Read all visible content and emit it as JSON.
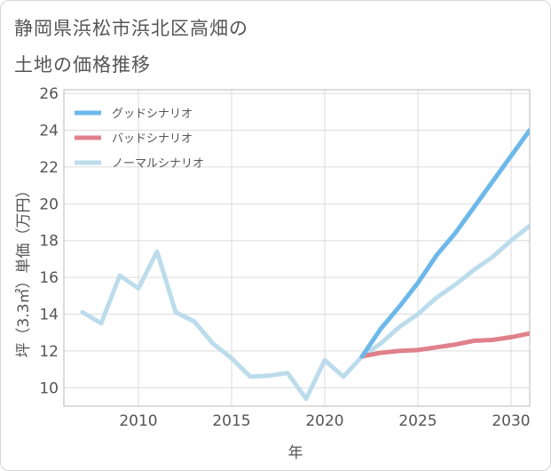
{
  "title": {
    "line1": "静岡県浜松市浜北区高畑の",
    "line2": "土地の価格推移"
  },
  "colors": {
    "good": "#6cb8ea",
    "bad": "#e0808a",
    "normal": "#bcdcec",
    "grid": "#dcdcdc",
    "frame": "#b9b9b9",
    "text": "#555555"
  },
  "chart_data": {
    "type": "line",
    "xlabel": "年",
    "ylabel": "坪（3.3㎡）単価（万円）",
    "xlim": [
      2006,
      2031
    ],
    "ylim": [
      9,
      26.2
    ],
    "xticks": [
      2010,
      2015,
      2020,
      2025,
      2030
    ],
    "yticks": [
      10,
      12,
      14,
      16,
      18,
      20,
      22,
      24,
      26
    ],
    "series": [
      {
        "key": "good",
        "name": "グッドシナリオ",
        "x": [
          2022,
          2023,
          2024,
          2025,
          2026,
          2027,
          2028,
          2029,
          2030,
          2031
        ],
        "y": [
          11.7,
          13.2,
          14.4,
          15.7,
          17.2,
          18.4,
          19.8,
          21.2,
          22.6,
          24.0
        ]
      },
      {
        "key": "bad",
        "name": "バッドシナリオ",
        "x": [
          2022,
          2023,
          2024,
          2025,
          2026,
          2027,
          2028,
          2029,
          2030,
          2031
        ],
        "y": [
          11.7,
          11.9,
          12.0,
          12.05,
          12.2,
          12.35,
          12.55,
          12.6,
          12.75,
          12.95
        ]
      },
      {
        "key": "normal",
        "name": "ノーマルシナリオ",
        "x": [
          2007,
          2008,
          2009,
          2010,
          2011,
          2012,
          2013,
          2014,
          2015,
          2016,
          2017,
          2018,
          2019,
          2020,
          2021,
          2022,
          2023,
          2024,
          2025,
          2026,
          2027,
          2028,
          2029,
          2030,
          2031
        ],
        "y": [
          14.1,
          13.5,
          16.1,
          15.4,
          17.4,
          14.1,
          13.6,
          12.4,
          11.6,
          10.6,
          10.65,
          10.8,
          9.4,
          11.5,
          10.6,
          11.7,
          12.4,
          13.3,
          14.0,
          14.9,
          15.6,
          16.4,
          17.1,
          18.0,
          18.8
        ]
      }
    ],
    "legend_position": "top-left"
  }
}
